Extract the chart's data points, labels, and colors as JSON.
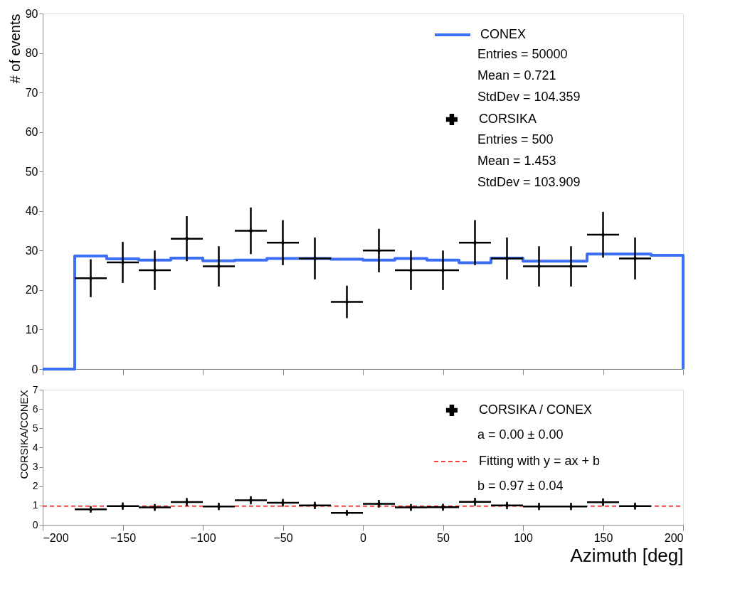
{
  "chart_data": [
    {
      "type": "step",
      "ylabel": "# of events",
      "xlim": [
        -200,
        200
      ],
      "ylim": [
        0,
        90
      ],
      "xticks": [
        -200,
        -150,
        -100,
        -50,
        0,
        50,
        100,
        150,
        200
      ],
      "yticks": [
        0,
        10,
        20,
        30,
        40,
        50,
        60,
        70,
        80,
        90
      ],
      "tick_labels": "y",
      "grid": false,
      "legend": "top right",
      "annotations": [
        "Entries = 50000",
        "Mean = 0.721",
        "StdDev = 104.359",
        "Entries = 500",
        "Mean = 1.453",
        "StdDev = 103.909"
      ],
      "series": [
        {
          "name": "CONEX",
          "line_style": "solid",
          "color": "#3d6ff5",
          "x": [
            -200,
            -180,
            -160,
            -140,
            -120,
            -100,
            -80,
            -60,
            -40,
            -20,
            0,
            20,
            40,
            60,
            80,
            100,
            120,
            140,
            160,
            180,
            200
          ],
          "values": [
            0,
            28.6,
            27.9,
            27.6,
            28.1,
            27.4,
            27.6,
            28.0,
            28.0,
            27.8,
            27.6,
            28.0,
            27.6,
            26.9,
            28.1,
            27.3,
            27.3,
            29.1,
            29.1,
            28.8,
            0
          ]
        },
        {
          "name": "CORSIKA",
          "type": "scatter",
          "marker": "cross",
          "color": "#000000",
          "x": [
            -170,
            -150,
            -130,
            -110,
            -90,
            -70,
            -50,
            -30,
            -10,
            10,
            30,
            50,
            70,
            90,
            110,
            130,
            150,
            170
          ],
          "values": [
            23,
            27,
            25,
            33,
            26,
            35,
            32,
            28,
            17,
            30,
            25,
            25,
            32,
            28,
            26,
            26,
            34,
            28
          ],
          "errors": [
            4.8,
            5.2,
            5.0,
            5.7,
            5.1,
            5.9,
            5.7,
            5.3,
            4.1,
            5.5,
            5.0,
            5.0,
            5.7,
            5.3,
            5.1,
            5.1,
            5.8,
            5.3
          ],
          "xerrors": [
            10,
            10,
            10,
            10,
            10,
            10,
            10,
            10,
            10,
            10,
            10,
            10,
            10,
            10,
            10,
            10,
            10,
            10
          ]
        }
      ]
    },
    {
      "type": "scatter",
      "xlabel": "Azimuth [deg]",
      "ylabel": "CORSIKA/CONEX",
      "xlim": [
        -200,
        200
      ],
      "ylim": [
        0,
        7
      ],
      "xticks": [
        -200,
        -150,
        -100,
        -50,
        0,
        50,
        100,
        150,
        200
      ],
      "yticks": [
        0,
        1,
        2,
        3,
        4,
        5,
        6,
        7
      ],
      "grid": false,
      "legend": "top right",
      "annotations": [
        "a = 0.00 ± 0.00",
        "b = 0.97 ± 0.04"
      ],
      "series": [
        {
          "name": "CORSIKA / CONEX",
          "marker": "cross",
          "color": "#000000",
          "x": [
            -170,
            -150,
            -130,
            -110,
            -90,
            -70,
            -50,
            -30,
            -10,
            10,
            30,
            50,
            70,
            90,
            110,
            130,
            150,
            170
          ],
          "values": [
            0.8,
            0.97,
            0.9,
            1.18,
            0.95,
            1.27,
            1.14,
            1.0,
            0.62,
            1.09,
            0.9,
            0.91,
            1.19,
            1.0,
            0.95,
            0.95,
            1.17,
            0.97
          ],
          "errors": [
            0.17,
            0.19,
            0.18,
            0.21,
            0.19,
            0.21,
            0.2,
            0.19,
            0.15,
            0.2,
            0.18,
            0.18,
            0.21,
            0.19,
            0.19,
            0.19,
            0.2,
            0.18
          ],
          "xerrors": [
            10,
            10,
            10,
            10,
            10,
            10,
            10,
            10,
            10,
            10,
            10,
            10,
            10,
            10,
            10,
            10,
            10,
            10
          ]
        },
        {
          "name": "Fitting with y = ax + b",
          "type": "line",
          "color": "#ff0000",
          "line_style": "dashed",
          "x": [
            -200,
            200
          ],
          "values": [
            0.97,
            0.97
          ]
        }
      ]
    }
  ]
}
